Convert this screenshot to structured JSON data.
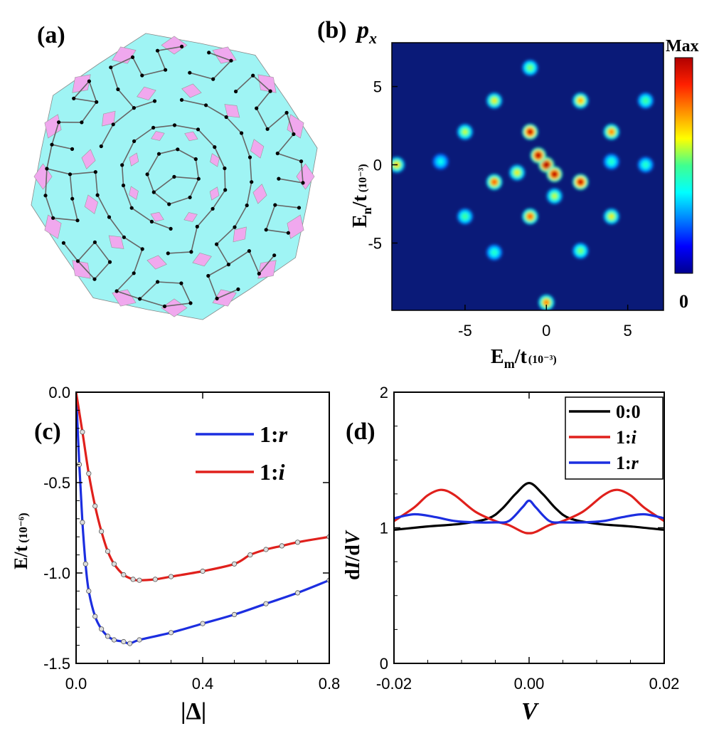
{
  "panels": {
    "a": {
      "label": "(a)"
    },
    "b": {
      "label": "(b)",
      "title_var": "p",
      "title_sub": "x",
      "colorbar_max": "Max",
      "colorbar_min": "0",
      "ylabel": {
        "main": "E",
        "sub": "n",
        "rest": "/t",
        "scale": "(10⁻³)"
      },
      "xlabel": {
        "main": "E",
        "sub": "m",
        "rest": "/t",
        "scale": "(10⁻³)"
      }
    },
    "c": {
      "label": "(c)",
      "ylabel": {
        "main": "E/t",
        "scale": "(10⁻⁶)"
      },
      "xlabel": "|Δ|"
    },
    "d": {
      "label": "(d)",
      "xlabel": "V",
      "ylabel": {
        "p1": "d",
        "p2": "I",
        "p3": "/d",
        "p4": "V"
      }
    }
  },
  "colors": {
    "tile_cyan": "#9ff4f4",
    "tile_pink": "#f0a8ee",
    "map_bg": "#0a1a78",
    "black": "#000000",
    "red": "#e0201c",
    "blue": "#1c2ee0"
  },
  "chart_data": [
    {
      "id": "b",
      "type": "heatmap",
      "title": "p_x",
      "xlabel": "E_m/t (10^-3)",
      "ylabel": "E_n/t (10^-3)",
      "xlim": [
        -9.5,
        7.2
      ],
      "ylim": [
        -9.3,
        7.8
      ],
      "xticks": [
        "-5",
        "0",
        "5"
      ],
      "yticks": [
        "5",
        "0",
        "-5"
      ],
      "colorbar": [
        "0",
        "Max"
      ],
      "peaks": [
        {
          "x": 0,
          "y": 0,
          "v": 1.0
        },
        {
          "x": -0.5,
          "y": 0.6,
          "v": 0.95
        },
        {
          "x": 0.5,
          "y": -0.6,
          "v": 0.95
        },
        {
          "x": -1.0,
          "y": 2.1,
          "v": 0.9
        },
        {
          "x": 2.1,
          "y": -1.1,
          "v": 0.9
        },
        {
          "x": -3.2,
          "y": -1.1,
          "v": 0.7
        },
        {
          "x": -1.0,
          "y": -3.3,
          "v": 0.7
        },
        {
          "x": 4.0,
          "y": 2.1,
          "v": 0.65
        },
        {
          "x": 2.1,
          "y": 4.1,
          "v": 0.6
        },
        {
          "x": -3.2,
          "y": 4.1,
          "v": 0.5
        },
        {
          "x": -5.0,
          "y": 2.1,
          "v": 0.45
        },
        {
          "x": 4.0,
          "y": -3.3,
          "v": 0.5
        },
        {
          "x": -1.0,
          "y": 6.2,
          "v": 0.4
        },
        {
          "x": 6.1,
          "y": 4.1,
          "v": 0.35
        },
        {
          "x": 6.1,
          "y": 0.0,
          "v": 0.3
        },
        {
          "x": -9.2,
          "y": 0.0,
          "v": 0.55
        },
        {
          "x": 0.0,
          "y": -8.8,
          "v": 0.65
        },
        {
          "x": -1.8,
          "y": -0.5,
          "v": 0.5
        },
        {
          "x": 0.5,
          "y": -2.0,
          "v": 0.45
        },
        {
          "x": -5.0,
          "y": -3.3,
          "v": 0.35
        },
        {
          "x": 2.1,
          "y": -5.5,
          "v": 0.4
        },
        {
          "x": -3.2,
          "y": -5.6,
          "v": 0.3
        },
        {
          "x": 4.0,
          "y": 0.2,
          "v": 0.3
        },
        {
          "x": -6.5,
          "y": 0.2,
          "v": 0.25
        }
      ]
    },
    {
      "id": "c",
      "type": "line",
      "xlabel": "|Δ|",
      "ylabel": "E/t (10^-6)",
      "xlim": [
        0,
        0.8
      ],
      "ylim": [
        -1.5,
        0
      ],
      "xticks": [
        "0.0",
        "0.4",
        "0.8"
      ],
      "yticks": [
        "0.0",
        "-0.5",
        "-1.0",
        "-1.5"
      ],
      "legend": "top-right",
      "series": [
        {
          "name": "1:r",
          "color": "#1c2ee0",
          "x": [
            0,
            0.01,
            0.02,
            0.03,
            0.04,
            0.06,
            0.08,
            0.1,
            0.12,
            0.15,
            0.17,
            0.2,
            0.3,
            0.4,
            0.5,
            0.6,
            0.7,
            0.8
          ],
          "y": [
            0,
            -0.4,
            -0.72,
            -0.95,
            -1.1,
            -1.24,
            -1.31,
            -1.35,
            -1.37,
            -1.38,
            -1.39,
            -1.37,
            -1.33,
            -1.28,
            -1.23,
            -1.17,
            -1.11,
            -1.04
          ]
        },
        {
          "name": "1:i",
          "color": "#e0201c",
          "x": [
            0,
            0.02,
            0.04,
            0.06,
            0.08,
            0.1,
            0.12,
            0.15,
            0.18,
            0.2,
            0.25,
            0.3,
            0.4,
            0.5,
            0.55,
            0.6,
            0.65,
            0.7,
            0.8
          ],
          "y": [
            0,
            -0.22,
            -0.45,
            -0.63,
            -0.77,
            -0.88,
            -0.95,
            -1.01,
            -1.035,
            -1.04,
            -1.035,
            -1.02,
            -0.99,
            -0.95,
            -0.9,
            -0.87,
            -0.85,
            -0.83,
            -0.8
          ]
        }
      ]
    },
    {
      "id": "d",
      "type": "line",
      "xlabel": "V",
      "ylabel": "dI/dV",
      "xlim": [
        -0.02,
        0.02
      ],
      "ylim": [
        0,
        2
      ],
      "xticks": [
        "-0.02",
        "0.00",
        "0.02"
      ],
      "yticks": [
        "0",
        "1",
        "2"
      ],
      "legend": "top-right",
      "series": [
        {
          "name": "0:0",
          "color": "#000000",
          "x": [
            -0.02,
            -0.015,
            -0.01,
            -0.006,
            -0.004,
            -0.002,
            0,
            0.002,
            0.004,
            0.006,
            0.01,
            0.015,
            0.02
          ],
          "y": [
            0.985,
            1.01,
            1.03,
            1.07,
            1.14,
            1.25,
            1.33,
            1.25,
            1.14,
            1.07,
            1.03,
            1.01,
            0.985
          ]
        },
        {
          "name": "1:i",
          "color": "#e0201c",
          "x": [
            -0.02,
            -0.017,
            -0.015,
            -0.013,
            -0.011,
            -0.008,
            -0.005,
            -0.003,
            -0.001,
            0,
            0.001,
            0.003,
            0.005,
            0.008,
            0.011,
            0.013,
            0.015,
            0.017,
            0.02
          ],
          "y": [
            1.05,
            1.15,
            1.24,
            1.28,
            1.24,
            1.12,
            1.05,
            1.02,
            0.97,
            0.96,
            0.97,
            1.02,
            1.05,
            1.12,
            1.24,
            1.28,
            1.24,
            1.15,
            1.05
          ]
        },
        {
          "name": "1:r",
          "color": "#1c2ee0",
          "x": [
            -0.02,
            -0.017,
            -0.014,
            -0.011,
            -0.008,
            -0.005,
            -0.003,
            -0.001,
            0,
            0.001,
            0.003,
            0.005,
            0.008,
            0.011,
            0.014,
            0.017,
            0.02
          ],
          "y": [
            1.07,
            1.1,
            1.08,
            1.05,
            1.04,
            1.04,
            1.05,
            1.15,
            1.2,
            1.15,
            1.05,
            1.04,
            1.04,
            1.05,
            1.08,
            1.1,
            1.07
          ]
        }
      ]
    }
  ]
}
